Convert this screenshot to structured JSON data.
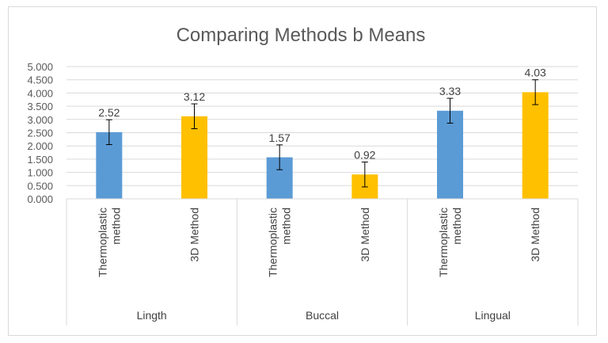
{
  "chart_data": {
    "type": "bar",
    "title": "Comparing Methods b Means",
    "ylim": [
      0,
      5
    ],
    "yticks": [
      "0.000",
      "0.500",
      "1.000",
      "1.500",
      "2.000",
      "2.500",
      "3.000",
      "3.500",
      "4.000",
      "4.500",
      "5.000"
    ],
    "grid": true,
    "legend": "none",
    "groups": [
      "Lingth",
      "Buccal",
      "Lingual"
    ],
    "bars": [
      {
        "group": "Lingth",
        "category_lines": [
          "Thermoplastic",
          "method"
        ],
        "value": 2.52,
        "label": "2.52",
        "error": 0.47,
        "color": "#5b9bd5"
      },
      {
        "group": "Lingth",
        "category_lines": [
          "3D  Method"
        ],
        "value": 3.12,
        "label": "3.12",
        "error": 0.47,
        "color": "#ffc000"
      },
      {
        "group": "Buccal",
        "category_lines": [
          "Thermoplastic",
          "method"
        ],
        "value": 1.57,
        "label": "1.57",
        "error": 0.47,
        "color": "#5b9bd5"
      },
      {
        "group": "Buccal",
        "category_lines": [
          "3D  Method"
        ],
        "value": 0.92,
        "label": "0.92",
        "error": 0.47,
        "color": "#ffc000"
      },
      {
        "group": "Lingual",
        "category_lines": [
          "Thermoplastic",
          "method"
        ],
        "value": 3.33,
        "label": "3.33",
        "error": 0.47,
        "color": "#5b9bd5"
      },
      {
        "group": "Lingual",
        "category_lines": [
          "3D  Method"
        ],
        "value": 4.03,
        "label": "4.03",
        "error": 0.47,
        "color": "#ffc000"
      }
    ]
  }
}
